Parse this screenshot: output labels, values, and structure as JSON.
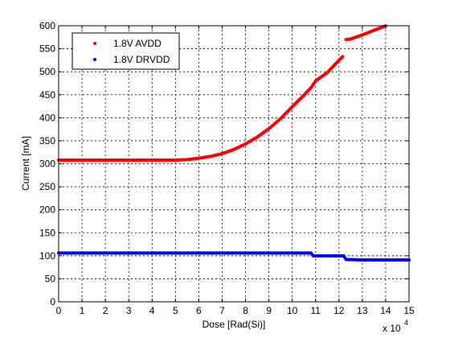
{
  "chart_data": {
    "type": "scatter",
    "xlabel": "Dose [Rad(Si)]",
    "ylabel": "Current [mA]",
    "x_multiplier_base": "x 10",
    "x_multiplier_exp": "4",
    "xlim": [
      0,
      15
    ],
    "ylim": [
      0,
      600
    ],
    "xticks": [
      "0",
      "1",
      "2",
      "3",
      "4",
      "5",
      "6",
      "7",
      "8",
      "9",
      "10",
      "11",
      "12",
      "13",
      "14",
      "15"
    ],
    "yticks": [
      "0",
      "50",
      "100",
      "150",
      "200",
      "250",
      "300",
      "350",
      "400",
      "450",
      "500",
      "550",
      "600"
    ],
    "grid": true,
    "legend_position": "top-left",
    "series": [
      {
        "name": "1.8V AVDD",
        "color": "#ff0000",
        "points": [
          [
            0,
            308
          ],
          [
            1,
            308
          ],
          [
            2,
            308
          ],
          [
            3,
            308
          ],
          [
            4,
            308
          ],
          [
            5,
            308
          ],
          [
            5.5,
            309
          ],
          [
            6,
            312
          ],
          [
            6.5,
            316
          ],
          [
            7,
            322
          ],
          [
            7.5,
            331
          ],
          [
            8,
            343
          ],
          [
            8.5,
            358
          ],
          [
            9,
            376
          ],
          [
            9.5,
            398
          ],
          [
            10,
            424
          ],
          [
            10.5,
            449
          ],
          [
            10.8,
            465
          ],
          [
            11.0,
            480
          ],
          [
            11.5,
            498
          ],
          [
            12.0,
            525
          ],
          [
            12.2,
            535
          ],
          [
            12.3,
            570
          ],
          [
            12.5,
            571
          ],
          [
            13.0,
            580
          ],
          [
            13.5,
            590
          ],
          [
            14.0,
            600
          ]
        ]
      },
      {
        "name": "1.8V DRVDD",
        "color": "#0000ff",
        "points": [
          [
            0,
            106
          ],
          [
            2,
            106
          ],
          [
            4,
            106
          ],
          [
            6,
            106
          ],
          [
            8,
            106
          ],
          [
            10,
            106
          ],
          [
            10.8,
            106
          ],
          [
            10.9,
            100
          ],
          [
            11.5,
            100
          ],
          [
            12.2,
            100
          ],
          [
            12.3,
            92
          ],
          [
            13,
            91
          ],
          [
            14,
            91
          ],
          [
            15,
            91
          ]
        ]
      }
    ]
  }
}
